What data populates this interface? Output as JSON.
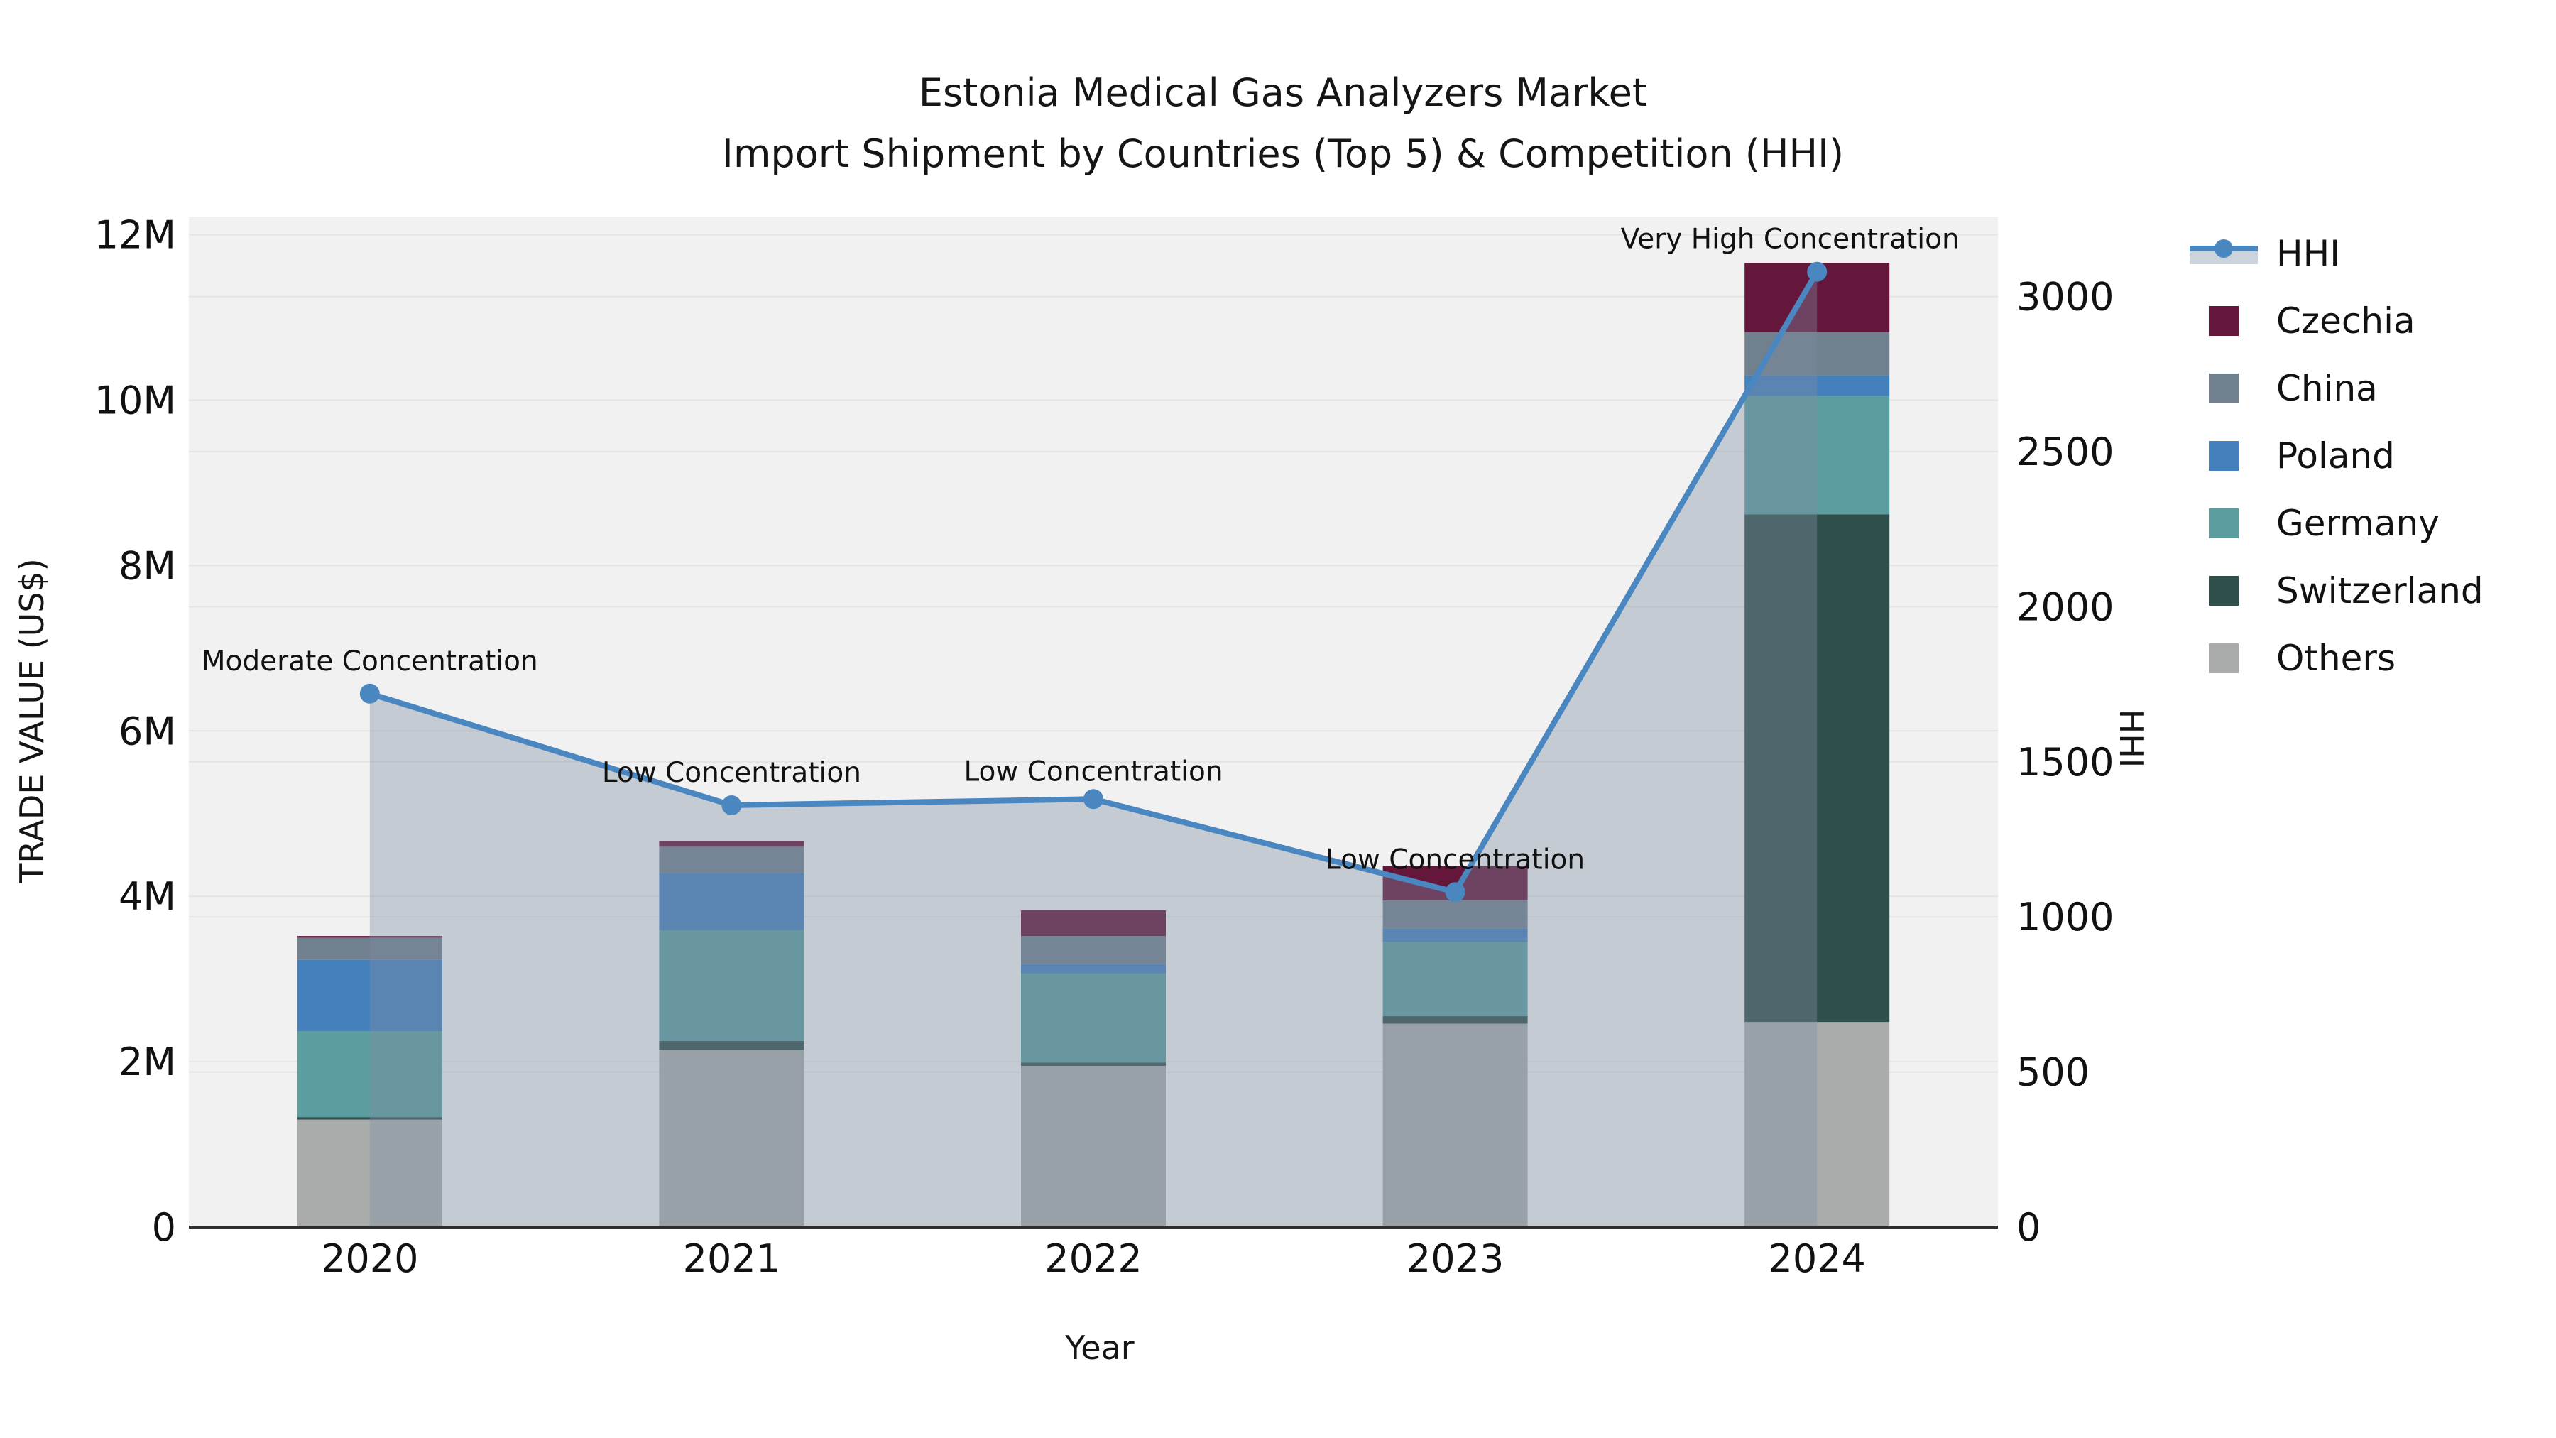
{
  "title": {
    "line1": "Estonia Medical Gas Analyzers Market",
    "line2": "Import Shipment by Countries (Top 5) & Competition (HHI)"
  },
  "axes": {
    "x": {
      "label": "Year",
      "ticks": [
        "2020",
        "2021",
        "2022",
        "2023",
        "2024"
      ]
    },
    "y_left": {
      "label": "TRADE VALUE (US$)",
      "ticks": [
        {
          "label": "0",
          "value": 0
        },
        {
          "label": "2M",
          "value": 2000000
        },
        {
          "label": "4M",
          "value": 4000000
        },
        {
          "label": "6M",
          "value": 6000000
        },
        {
          "label": "8M",
          "value": 8000000
        },
        {
          "label": "10M",
          "value": 10000000
        },
        {
          "label": "12M",
          "value": 12000000
        }
      ]
    },
    "y_right": {
      "label": "HHI",
      "ticks": [
        {
          "label": "0",
          "value": 0
        },
        {
          "label": "500",
          "value": 500
        },
        {
          "label": "1000",
          "value": 1000
        },
        {
          "label": "1500",
          "value": 1500
        },
        {
          "label": "2000",
          "value": 2000
        },
        {
          "label": "2500",
          "value": 2500
        },
        {
          "label": "3000",
          "value": 3000
        }
      ]
    }
  },
  "legend": {
    "items": [
      {
        "label": "HHI",
        "type": "line",
        "color": "#4A86C0",
        "band_color": "#CBD3DD"
      },
      {
        "label": "Czechia",
        "type": "rect",
        "color": "#64163B"
      },
      {
        "label": "China",
        "type": "rect",
        "color": "#71808F"
      },
      {
        "label": "Poland",
        "type": "rect",
        "color": "#4480BC"
      },
      {
        "label": "Germany",
        "type": "rect",
        "color": "#5C9DA0"
      },
      {
        "label": "Switzerland",
        "type": "rect",
        "color": "#2F4F4C"
      },
      {
        "label": "Others",
        "type": "rect",
        "color": "#A9ACAB"
      }
    ]
  },
  "annotations": [
    {
      "year": "2020",
      "text": "Moderate Concentration"
    },
    {
      "year": "2021",
      "text": "Low Concentration"
    },
    {
      "year": "2022",
      "text": "Low Concentration"
    },
    {
      "year": "2023",
      "text": "Low Concentration"
    },
    {
      "year": "2024",
      "text": "Very High Concentration"
    }
  ],
  "chart_data": {
    "type": "bar",
    "subtype": "stacked-bars-with-line-overlay",
    "title": "Estonia Medical Gas Analyzers Market — Import Shipment by Countries (Top 5) & Competition (HHI)",
    "xlabel": "Year",
    "ylabel": "TRADE VALUE (US$)",
    "ylabel_right": "HHI",
    "categories": [
      "2020",
      "2021",
      "2022",
      "2023",
      "2024"
    ],
    "series": [
      {
        "name": "Others",
        "color": "#A9ACAB",
        "values": [
          1300000,
          2140000,
          1950000,
          2460000,
          2480000
        ]
      },
      {
        "name": "Switzerland",
        "color": "#2F4F4C",
        "values": [
          30000,
          110000,
          40000,
          90000,
          6140000
        ]
      },
      {
        "name": "Germany",
        "color": "#5C9DA0",
        "values": [
          1040000,
          1340000,
          1080000,
          900000,
          1430000
        ]
      },
      {
        "name": "Poland",
        "color": "#4480BC",
        "values": [
          860000,
          690000,
          110000,
          160000,
          250000
        ]
      },
      {
        "name": "China",
        "color": "#71808F",
        "values": [
          270000,
          320000,
          340000,
          340000,
          520000
        ]
      },
      {
        "name": "Czechia",
        "color": "#64163B",
        "values": [
          20000,
          70000,
          310000,
          420000,
          840000
        ]
      }
    ],
    "totals": [
      3520000,
      4670000,
      3830000,
      4370000,
      11660000
    ],
    "line_series": {
      "name": "HHI",
      "color": "#4A86C0",
      "area_fill": "rgba(125,142,163,0.38)",
      "values": [
        1720,
        1360,
        1380,
        1080,
        3080
      ]
    },
    "ylim_left": [
      0,
      12220000
    ],
    "ylim_right": [
      0,
      3258
    ],
    "grid": true,
    "legend_position": "right",
    "plot_bg": "#F1F1F1",
    "grid_color": "#E4E4E4",
    "axis_line_color": "#2E2E2E"
  }
}
